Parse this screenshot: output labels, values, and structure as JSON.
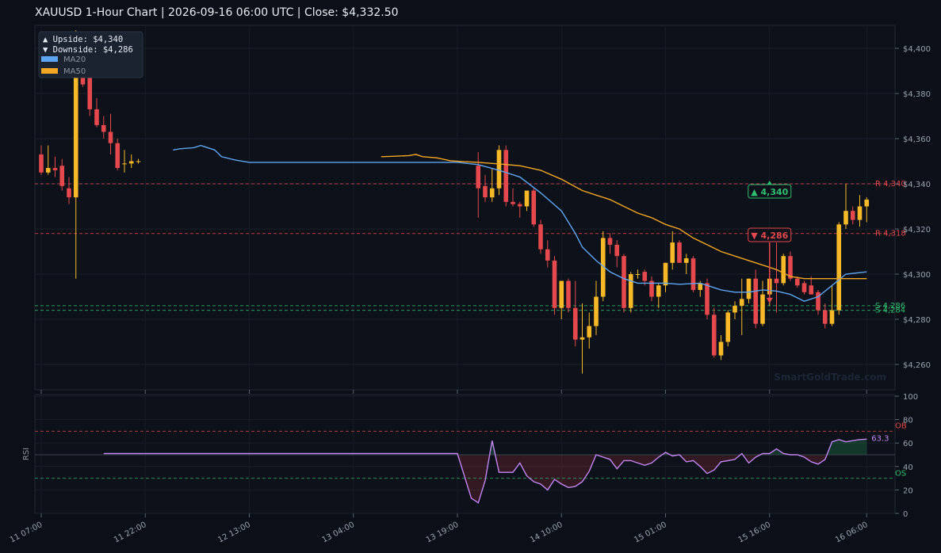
{
  "header": {
    "title": "XAUUSD  1-Hour Chart  |  2026-09-16 06:00 UTC  |  Close: $4,332.50"
  },
  "info_box": {
    "upside": "▲ Upside:   $4,340",
    "downside": "▼ Downside: $4,286"
  },
  "legend": [
    {
      "name": "MA20",
      "color": "#5ea6f5"
    },
    {
      "name": "MA50",
      "color": "#f5a623"
    }
  ],
  "watermark": "SmartGoldTrade.com",
  "colors": {
    "bull": "#f7b928",
    "bear": "#e5484d",
    "ma20": "#5ea6f5",
    "ma50": "#f5a623",
    "rsi": "#c586f5",
    "resistance": "#e5484d",
    "support": "#2fbf71"
  },
  "chart_data": [
    {
      "type": "candlestick",
      "title": "XAUUSD  1-Hour Chart  |  2026-09-16 06:00 UTC  |  Close: $4,332.50",
      "ylim": [
        4252,
        4410
      ],
      "yticks": [
        4260,
        4280,
        4300,
        4320,
        4340,
        4360,
        4380,
        4400
      ],
      "ytick_labels": [
        "$4,260",
        "$4,280",
        "$4,300",
        "$4,320",
        "$4,340",
        "$4,360",
        "$4,380",
        "$4,400"
      ],
      "xtick_labels": [
        "11 07:00",
        "11 22:00",
        "12 13:00",
        "13 04:00",
        "13 19:00",
        "14 10:00",
        "15 01:00",
        "15 16:00",
        "16 06:00"
      ],
      "xtick_index": [
        0,
        15,
        30,
        45,
        60,
        75,
        90,
        105,
        119
      ],
      "ohlc_index": [
        0,
        1,
        2,
        3,
        4,
        5,
        6,
        7,
        8,
        9,
        10,
        11,
        12,
        13,
        14,
        63,
        64,
        65,
        66,
        67,
        68,
        69,
        70,
        71,
        72,
        73,
        74,
        75,
        76,
        77,
        78,
        79,
        80,
        81,
        82,
        83,
        84,
        85,
        86,
        87,
        88,
        89,
        90,
        91,
        92,
        93,
        94,
        95,
        96,
        97,
        98,
        99,
        100,
        101,
        102,
        103,
        104,
        105,
        106,
        107,
        108,
        109,
        110,
        111,
        112,
        113,
        114,
        115,
        116,
        117,
        118,
        119
      ],
      "ohlc": [
        [
          4353,
          4357,
          4344,
          4345
        ],
        [
          4345,
          4357,
          4344,
          4347
        ],
        [
          4347,
          4352,
          4343,
          4346
        ],
        [
          4348,
          4351,
          4337,
          4339
        ],
        [
          4338,
          4343,
          4331,
          4334
        ],
        [
          4334,
          4408,
          4298,
          4403
        ],
        [
          4395,
          4400,
          4383,
          4384
        ],
        [
          4387,
          4391,
          4370,
          4373
        ],
        [
          4373,
          4378,
          4365,
          4366
        ],
        [
          4366,
          4370,
          4360,
          4363
        ],
        [
          4363,
          4371,
          4353,
          4358
        ],
        [
          4358,
          4360,
          4346,
          4347
        ],
        [
          4349,
          4355,
          4345,
          4349
        ],
        [
          4349,
          4353,
          4347,
          4350
        ],
        [
          4350,
          4351,
          4349,
          4350
        ],
        [
          4348,
          4354,
          4325,
          4338
        ],
        [
          4339,
          4344,
          4332,
          4334
        ],
        [
          4334,
          4347,
          4332,
          4338
        ],
        [
          4338,
          4357,
          4335,
          4355
        ],
        [
          4355,
          4357,
          4330,
          4332
        ],
        [
          4332,
          4338,
          4330,
          4331
        ],
        [
          4331,
          4332,
          4325,
          4330
        ],
        [
          4330,
          4337,
          4328,
          4337
        ],
        [
          4337,
          4338,
          4321,
          4322
        ],
        [
          4322,
          4324,
          4309,
          4311
        ],
        [
          4311,
          4315,
          4303,
          4306
        ],
        [
          4306,
          4308,
          4282,
          4285
        ],
        [
          4285,
          4297,
          4280,
          4297
        ],
        [
          4297,
          4298,
          4283,
          4285
        ],
        [
          4285,
          4297,
          4268,
          4271
        ],
        [
          4271,
          4287,
          4256,
          4272
        ],
        [
          4272,
          4283,
          4267,
          4277
        ],
        [
          4277,
          4297,
          4273,
          4290
        ],
        [
          4290,
          4319,
          4288,
          4316
        ],
        [
          4316,
          4318,
          4309,
          4313
        ],
        [
          4313,
          4315,
          4303,
          4308
        ],
        [
          4308,
          4309,
          4283,
          4285
        ],
        [
          4285,
          4301,
          4283,
          4300
        ],
        [
          4300,
          4302,
          4298,
          4300
        ],
        [
          4301,
          4302,
          4295,
          4297
        ],
        [
          4297,
          4299,
          4288,
          4290
        ],
        [
          4290,
          4296,
          4285,
          4295
        ],
        [
          4295,
          4305,
          4292,
          4305
        ],
        [
          4305,
          4319,
          4302,
          4314
        ],
        [
          4314,
          4315,
          4306,
          4305
        ],
        [
          4305,
          4309,
          4300,
          4307
        ],
        [
          4307,
          4308,
          4292,
          4293
        ],
        [
          4293,
          4297,
          4290,
          4296
        ],
        [
          4296,
          4298,
          4280,
          4282
        ],
        [
          4282,
          4285,
          4263,
          4264
        ],
        [
          4264,
          4273,
          4262,
          4270
        ],
        [
          4270,
          4284,
          4268,
          4283
        ],
        [
          4283,
          4288,
          4280,
          4286
        ],
        [
          4286,
          4298,
          4273,
          4289
        ],
        [
          4289,
          4298,
          4287,
          4298
        ],
        [
          4298,
          4302,
          4276,
          4278
        ],
        [
          4278,
          4297,
          4277,
          4291
        ],
        [
          4291,
          4300,
          4286,
          4298
        ],
        [
          4298,
          4314,
          4283,
          4296
        ],
        [
          4296,
          4309,
          4295,
          4308
        ],
        [
          4308,
          4310,
          4297,
          4298
        ],
        [
          4298,
          4299,
          4294,
          4295
        ],
        [
          4296,
          4297,
          4291,
          4292
        ],
        [
          4295,
          4299,
          4292,
          4291
        ],
        [
          4292,
          4293,
          4282,
          4284
        ],
        [
          4284,
          4287,
          4276,
          4278
        ],
        [
          4278,
          4295,
          4277,
          4284
        ],
        [
          4284,
          4323,
          4282,
          4322
        ],
        [
          4322,
          4340,
          4320,
          4328
        ],
        [
          4328,
          4330,
          4322,
          4324
        ],
        [
          4324,
          4335,
          4321,
          4330
        ],
        [
          4330,
          4334,
          4323,
          4333
        ]
      ],
      "series": [
        {
          "name": "MA20",
          "x": [
            19,
            20,
            22,
            23,
            25,
            26,
            28,
            30,
            32,
            34,
            40,
            50,
            60,
            63,
            66,
            69,
            72,
            75,
            77,
            78,
            80,
            82,
            84,
            86,
            88,
            90,
            92,
            95,
            98,
            100,
            102,
            104,
            106,
            108,
            110,
            112,
            114,
            116,
            119
          ],
          "values": [
            4355,
            4355.5,
            4356,
            4357,
            4355,
            4352,
            4350.5,
            4349.5,
            4349.5,
            4349.5,
            4349.5,
            4349.5,
            4349.5,
            4348.5,
            4346,
            4343,
            4336,
            4328,
            4318,
            4312,
            4306,
            4301,
            4298,
            4296,
            4296,
            4296,
            4295.5,
            4296,
            4293,
            4292,
            4292,
            4293,
            4292.5,
            4291,
            4288,
            4290,
            4295,
            4300,
            4301
          ]
        },
        {
          "name": "MA50",
          "x": [
            49,
            51,
            53,
            54,
            55,
            57,
            59,
            61,
            63,
            66,
            69,
            72,
            75,
            78,
            80,
            82,
            84,
            86,
            88,
            90,
            92,
            94,
            96,
            98,
            100,
            102,
            104,
            106,
            108,
            110,
            112,
            114,
            116,
            119
          ],
          "values": [
            4352,
            4352.2,
            4352.5,
            4353,
            4352,
            4351.5,
            4350.2,
            4349.8,
            4349.5,
            4348.8,
            4348,
            4346,
            4342,
            4337,
            4335,
            4333,
            4330,
            4327,
            4325,
            4322,
            4320,
            4316,
            4313,
            4310,
            4308,
            4306,
            4304,
            4302,
            4299,
            4298,
            4298,
            4298,
            4298,
            4298
          ]
        }
      ],
      "levels": [
        {
          "name": "R 4,340",
          "value": 4340,
          "type": "resistance"
        },
        {
          "name": "R 4,318",
          "value": 4318,
          "type": "resistance"
        },
        {
          "name": "S 4,286",
          "value": 4286,
          "type": "support"
        },
        {
          "name": "S 4,284",
          "value": 4284,
          "type": "support"
        }
      ],
      "annotations": [
        {
          "label": "▲ 4,340",
          "x": 105,
          "value": 4340,
          "type": "target-up"
        },
        {
          "label": "▼ 4,286",
          "x": 105,
          "value": 4286,
          "type": "target-down"
        }
      ]
    },
    {
      "type": "line",
      "ylabel": "RSI",
      "ylim": [
        0,
        100
      ],
      "yticks": [
        0,
        20,
        40,
        60,
        80,
        100
      ],
      "ytick_labels": [
        "0",
        "20",
        "40",
        "60",
        "80",
        "100"
      ],
      "overbought": {
        "label": "OB",
        "value": 70
      },
      "oversold": {
        "label": "OS",
        "value": 30
      },
      "last_label": "63.3",
      "series": [
        {
          "name": "RSI",
          "x": [
            9,
            60,
            62,
            63,
            64,
            65,
            66,
            67,
            68,
            69,
            70,
            71,
            72,
            73,
            74,
            75,
            76,
            77,
            78,
            79,
            80,
            81,
            82,
            83,
            84,
            85,
            86,
            87,
            88,
            89,
            90,
            91,
            92,
            93,
            94,
            95,
            96,
            97,
            98,
            99,
            100,
            101,
            102,
            103,
            104,
            105,
            106,
            107,
            108,
            109,
            110,
            111,
            112,
            113,
            114,
            115,
            116,
            117,
            118,
            119
          ],
          "values": [
            51,
            51,
            13,
            9,
            28,
            62,
            35,
            35,
            35,
            43,
            32,
            27,
            25,
            20,
            29,
            25,
            22,
            23,
            27,
            36,
            50,
            48,
            46,
            38,
            45,
            45,
            43,
            41,
            43,
            48,
            52,
            49,
            50,
            44,
            45,
            40,
            34,
            37,
            44,
            45,
            46,
            51,
            43,
            48,
            51,
            51,
            55,
            51,
            50,
            50,
            48,
            44,
            42,
            46,
            61,
            63,
            61,
            62,
            63,
            63.3
          ]
        }
      ]
    }
  ]
}
